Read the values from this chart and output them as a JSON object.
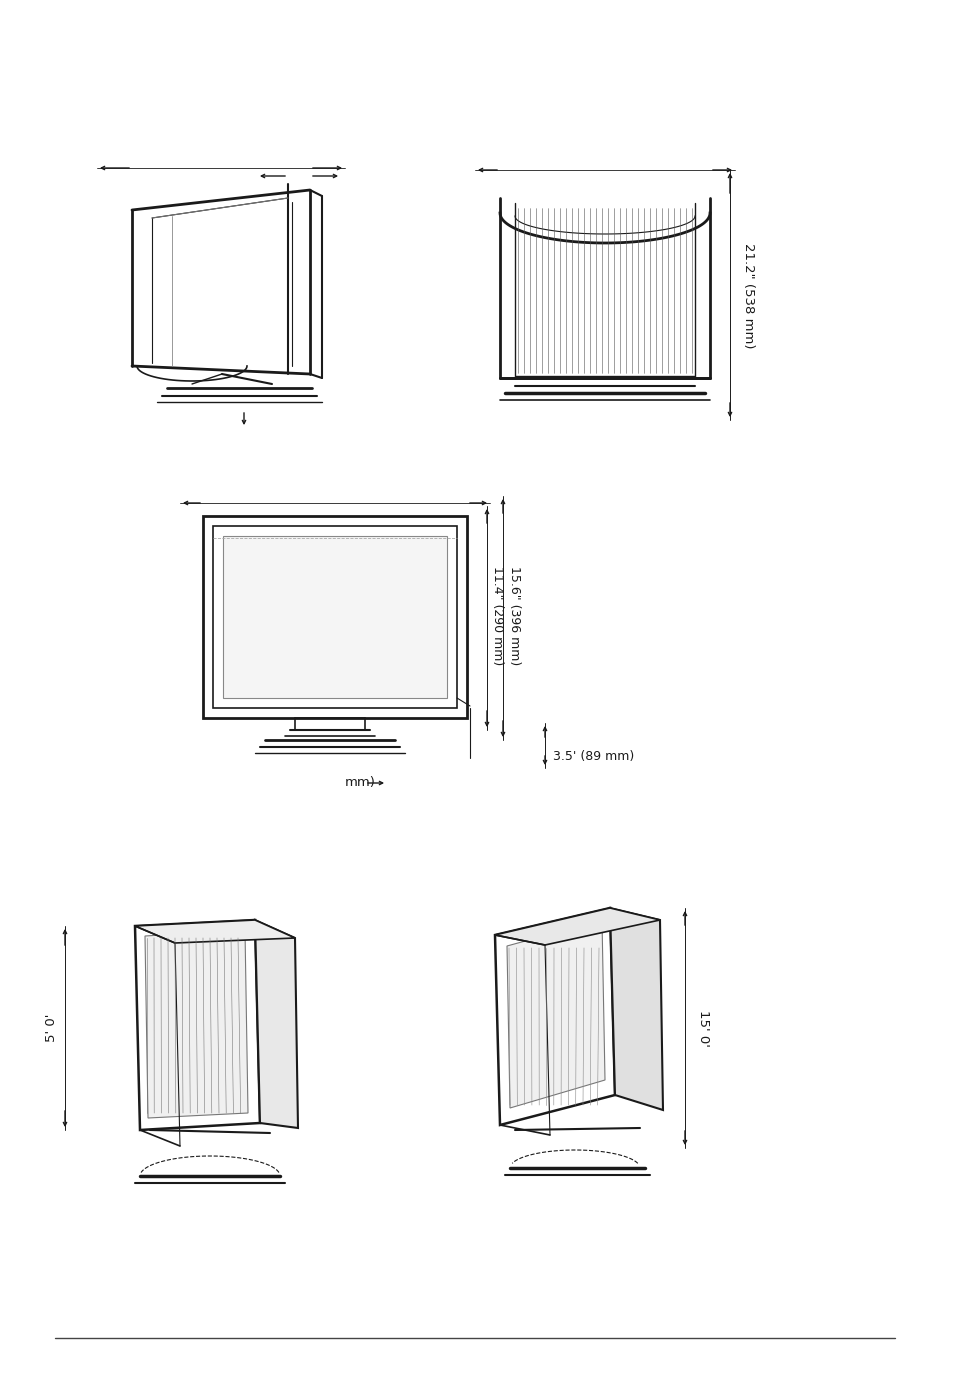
{
  "bg_color": "#ffffff",
  "sk": "#1a1a1a",
  "dc": "#1a1a1a",
  "annotations": {
    "height_label": "21.2\" (538 mm)",
    "dim_inner": "11.4\" (290 mm)",
    "dim_outer": "15.6\" (396 mm)",
    "base_label": "3.5' (89 mm)",
    "mm_label": "mm)",
    "tilt_left": "5' 0'",
    "tilt_right": "15' 0'"
  },
  "fs": 9,
  "fm": 9.5
}
